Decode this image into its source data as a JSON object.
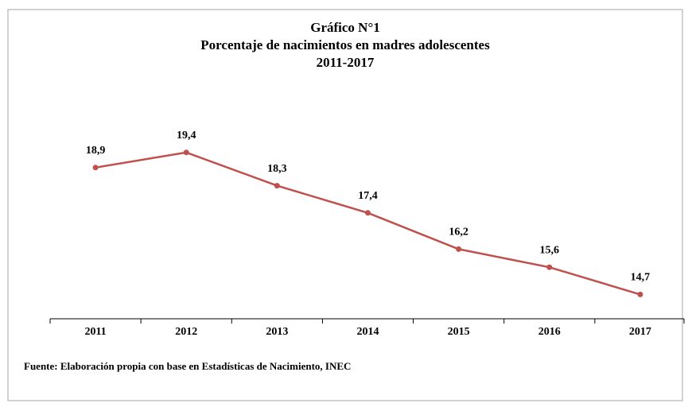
{
  "chart_data": {
    "type": "line",
    "title": [
      "Gráfico N°1",
      "Porcentaje de nacimientos en madres adolescentes",
      "2011-2017"
    ],
    "categories": [
      "2011",
      "2012",
      "2013",
      "2014",
      "2015",
      "2016",
      "2017"
    ],
    "series": [
      {
        "color": "#c0504d",
        "values": [
          18.9,
          19.4,
          18.3,
          17.4,
          16.2,
          15.6,
          14.7
        ],
        "value_labels": [
          "18,9",
          "19,4",
          "18,3",
          "17,4",
          "16,2",
          "15,6",
          "14,7"
        ]
      }
    ],
    "ylim": [
      14,
      20
    ],
    "source": "Fuente: Elaboración propia con base en Estadísticas de Nacimiento, INEC"
  }
}
